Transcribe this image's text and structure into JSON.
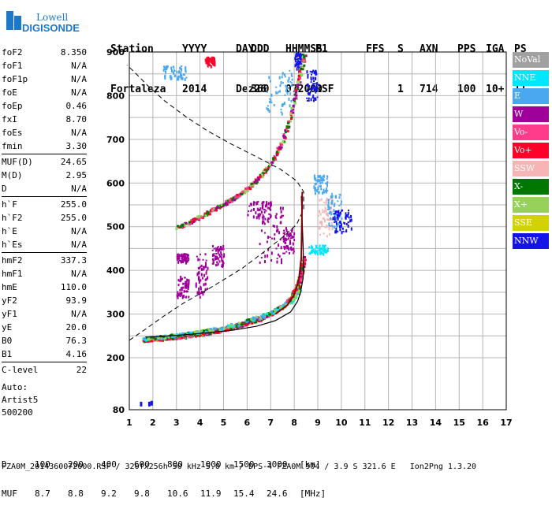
{
  "logo": {
    "line1": "Lowell",
    "line2": "DIGISONDE"
  },
  "header": {
    "labels": [
      "Station",
      "YYYY",
      "DAY",
      "DDD",
      "HHMMSS",
      "P1",
      "FFS",
      "S",
      "AXN",
      "PPS",
      "IGA",
      "PS"
    ],
    "values": [
      "Fortaleza",
      "2014",
      "Dez26",
      "360",
      "072000",
      "RSF",
      "",
      "1",
      "714",
      "100",
      "10+",
      "11"
    ]
  },
  "params": [
    [
      {
        "k": "foF2",
        "v": "8.350"
      },
      {
        "k": "foF1",
        "v": "N/A"
      },
      {
        "k": "foF1p",
        "v": "N/A"
      },
      {
        "k": "foE",
        "v": "N/A"
      },
      {
        "k": "foEp",
        "v": "0.46"
      },
      {
        "k": "fxI",
        "v": "8.70"
      },
      {
        "k": "foEs",
        "v": "N/A"
      },
      {
        "k": "fmin",
        "v": "3.30"
      }
    ],
    [
      {
        "k": "MUF(D)",
        "v": "24.65"
      },
      {
        "k": "M(D)",
        "v": "2.95"
      },
      {
        "k": "D",
        "v": "N/A"
      }
    ],
    [
      {
        "k": "h`F",
        "v": "255.0"
      },
      {
        "k": "h`F2",
        "v": "255.0"
      },
      {
        "k": "h`E",
        "v": "N/A"
      },
      {
        "k": "h`Es",
        "v": "N/A"
      }
    ],
    [
      {
        "k": "hmF2",
        "v": "337.3"
      },
      {
        "k": "hmF1",
        "v": "N/A"
      },
      {
        "k": "hmE",
        "v": "110.0"
      },
      {
        "k": "yF2",
        "v": "93.9"
      },
      {
        "k": "yF1",
        "v": "N/A"
      },
      {
        "k": "yE",
        "v": "20.0"
      },
      {
        "k": "B0",
        "v": "76.3"
      },
      {
        "k": "B1",
        "v": "4.16"
      }
    ],
    [
      {
        "k": "C-level",
        "v": "22"
      }
    ]
  ],
  "auto": {
    "line1": "Auto:",
    "line2": "Artist5",
    "line3": "500200"
  },
  "legend": [
    {
      "label": "NoVal",
      "color": "#a0a0a0"
    },
    {
      "label": "NNE",
      "color": "#00e6ff"
    },
    {
      "label": "E",
      "color": "#4aa8f0"
    },
    {
      "label": "W",
      "color": "#a0009a"
    },
    {
      "label": "Vo-",
      "color": "#ff3c8c"
    },
    {
      "label": "Vo+",
      "color": "#ff0028"
    },
    {
      "label": "SSW",
      "color": "#f6b4b4"
    },
    {
      "label": "X-",
      "color": "#007800"
    },
    {
      "label": "X+",
      "color": "#96d25a"
    },
    {
      "label": "SSE",
      "color": "#d2d200"
    },
    {
      "label": "NNW",
      "color": "#1414e6"
    }
  ],
  "dmuf": {
    "d_label": "D",
    "d_values": [
      "100",
      "200",
      "400",
      "600",
      "800",
      "1000",
      "1500",
      "3000",
      "[km]"
    ],
    "muf_label": "MUF",
    "muf_values": [
      "8.7",
      "8.8",
      "9.2",
      "9.8",
      "10.6",
      "11.9",
      "15.4",
      "24.6",
      "[MHz]"
    ]
  },
  "footer": "FZA0M_2014360072000.RSF / 320fx256h 50 kHz 5.0 km / DPS-4 FZA0M 904 / 3.9 S 321.6 E   Ion2Png 1.3.20",
  "chart_data": {
    "type": "scatter",
    "xlim": [
      1,
      17
    ],
    "ylim": [
      80,
      900
    ],
    "x_ticks": [
      1,
      2,
      3,
      4,
      5,
      6,
      7,
      8,
      9,
      10,
      11,
      12,
      13,
      14,
      15,
      16,
      17
    ],
    "y_ticks": [
      80,
      200,
      300,
      400,
      500,
      600,
      700,
      800,
      900
    ],
    "grid": true,
    "trace_lower": [
      [
        1.6,
        243
      ],
      [
        2,
        245
      ],
      [
        2.5,
        247
      ],
      [
        3,
        250
      ],
      [
        3.5,
        253
      ],
      [
        4,
        257
      ],
      [
        4.5,
        262
      ],
      [
        5,
        268
      ],
      [
        5.5,
        275
      ],
      [
        6,
        283
      ],
      [
        6.5,
        292
      ],
      [
        7,
        304
      ],
      [
        7.4,
        316
      ],
      [
        7.8,
        334
      ],
      [
        8.1,
        360
      ],
      [
        8.25,
        390
      ],
      [
        8.35,
        430
      ]
    ],
    "trace_lower_2": [
      [
        1.6,
        245
      ],
      [
        2.5,
        250
      ],
      [
        3.5,
        257
      ],
      [
        4.5,
        266
      ],
      [
        5.5,
        278
      ],
      [
        6.5,
        295
      ],
      [
        7.2,
        310
      ],
      [
        7.8,
        330
      ],
      [
        8.2,
        355
      ]
    ],
    "trace_upper": [
      [
        3,
        500
      ],
      [
        3.5,
        512
      ],
      [
        4,
        525
      ],
      [
        4.5,
        540
      ],
      [
        5,
        555
      ],
      [
        5.5,
        570
      ],
      [
        6,
        590
      ],
      [
        6.5,
        615
      ],
      [
        7,
        648
      ],
      [
        7.5,
        700
      ],
      [
        7.9,
        770
      ],
      [
        8.2,
        850
      ],
      [
        8.4,
        895
      ]
    ],
    "profile_solid": [
      [
        8.3,
        570
      ],
      [
        8.38,
        450
      ],
      [
        8.4,
        400
      ],
      [
        8.37,
        380
      ],
      [
        8.27,
        350
      ],
      [
        8.15,
        330
      ],
      [
        7.85,
        305
      ],
      [
        7.2,
        285
      ],
      [
        6.4,
        272
      ],
      [
        5.4,
        263
      ],
      [
        4.3,
        257
      ],
      [
        3.2,
        252
      ],
      [
        2.4,
        249
      ],
      [
        1.7,
        247
      ]
    ],
    "profile_dashed": [
      [
        1.0,
        240
      ],
      [
        1.6,
        262
      ],
      [
        2.4,
        293
      ],
      [
        3.3,
        325
      ],
      [
        4.5,
        362
      ],
      [
        5.8,
        405
      ],
      [
        6.9,
        450
      ],
      [
        7.6,
        480
      ],
      [
        8.1,
        505
      ],
      [
        8.4,
        540
      ],
      [
        8.4,
        580
      ],
      [
        8.1,
        605
      ],
      [
        7.4,
        632
      ],
      [
        6.4,
        660
      ],
      [
        5.3,
        690
      ],
      [
        4.3,
        720
      ],
      [
        3.4,
        752
      ],
      [
        2.5,
        788
      ],
      [
        1.8,
        822
      ],
      [
        1.2,
        855
      ],
      [
        0.9,
        870
      ]
    ],
    "noise_patches": [
      {
        "x": [
          3.8,
          4.3
        ],
        "y": [
          340,
          440
        ],
        "dir": "W"
      },
      {
        "x": [
          3.0,
          3.5
        ],
        "y": [
          340,
          390
        ],
        "dir": "W"
      },
      {
        "x": [
          4.5,
          5.0
        ],
        "y": [
          410,
          460
        ],
        "dir": "W"
      },
      {
        "x": [
          6.5,
          7.5
        ],
        "y": [
          420,
          560
        ],
        "dir": "W"
      },
      {
        "x": [
          7.5,
          8.0
        ],
        "y": [
          440,
          500
        ],
        "dir": "W"
      },
      {
        "x": [
          9.0,
          9.6
        ],
        "y": [
          480,
          570
        ],
        "dir": "SSW"
      },
      {
        "x": [
          9.4,
          10.0
        ],
        "y": [
          500,
          580
        ],
        "dir": "E"
      },
      {
        "x": [
          9.6,
          10.4
        ],
        "y": [
          490,
          540
        ],
        "dir": "NNW"
      },
      {
        "x": [
          8.6,
          9.4
        ],
        "y": [
          440,
          460
        ],
        "dir": "NNE"
      },
      {
        "x": [
          8.8,
          9.4
        ],
        "y": [
          580,
          620
        ],
        "dir": "E"
      },
      {
        "x": [
          6.8,
          8.0
        ],
        "y": [
          760,
          860
        ],
        "dir": "E"
      },
      {
        "x": [
          8.5,
          9.0
        ],
        "y": [
          790,
          860
        ],
        "dir": "NNW"
      },
      {
        "x": [
          2.4,
          3.4
        ],
        "y": [
          840,
          870
        ],
        "dir": "E"
      },
      {
        "x": [
          4.2,
          4.6
        ],
        "y": [
          870,
          890
        ],
        "dir": "Vo+"
      },
      {
        "x": [
          8.0,
          8.3
        ],
        "y": [
          860,
          900
        ],
        "dir": "NNW"
      },
      {
        "x": [
          6.0,
          7.0
        ],
        "y": [
          520,
          560
        ],
        "dir": "W"
      },
      {
        "x": [
          3.0,
          3.5
        ],
        "y": [
          420,
          440
        ],
        "dir": "W"
      }
    ],
    "misc_marks": [
      [
        1.45,
        93
      ],
      [
        1.8,
        93
      ],
      [
        1.9,
        95
      ]
    ]
  }
}
